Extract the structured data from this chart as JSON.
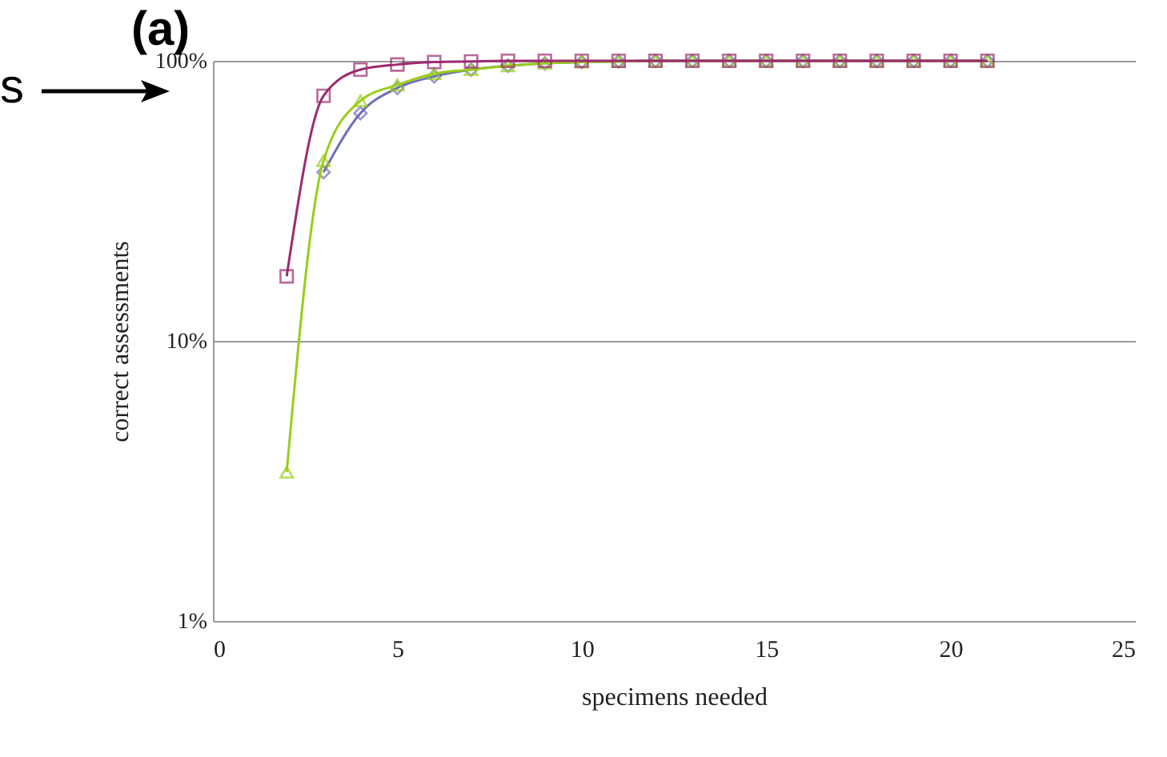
{
  "chart_data": {
    "type": "line",
    "xlabel": "specimens needed",
    "ylabel": "correct assessments",
    "annotations": [
      "(a)",
      "s"
    ],
    "x": [
      2,
      3,
      4,
      5,
      6,
      7,
      8,
      9,
      10,
      11,
      12,
      13,
      14,
      15,
      16,
      17,
      18,
      19,
      20,
      21
    ],
    "series": [
      {
        "color": "#6b6fb5",
        "marker": "diamond",
        "values": [
          null,
          40,
          65,
          80,
          88,
          93,
          96,
          98,
          99,
          99.5,
          100,
          100,
          100,
          100,
          100,
          100,
          100,
          100,
          100,
          100
        ]
      },
      {
        "color": "#9acd1a",
        "marker": "triangle",
        "values": [
          3.4,
          44,
          72,
          82,
          90,
          93,
          96,
          98,
          99,
          99.5,
          100,
          100,
          100,
          100,
          100,
          100,
          100,
          100,
          100,
          100
        ]
      },
      {
        "color": "#9c2a6e",
        "marker": "square",
        "values": [
          17,
          75,
          93,
          97,
          99,
          99.5,
          100,
          100,
          100,
          100,
          100,
          100,
          100,
          100,
          100,
          100,
          100,
          100,
          100,
          100
        ]
      }
    ],
    "log": "y",
    "grid": "y",
    "xlim": [
      0,
      25
    ],
    "xticks": [
      0,
      5,
      10,
      15,
      20,
      25
    ],
    "ylim": [
      1,
      100
    ],
    "yticks": [
      {
        "value": 1,
        "label": "1%"
      },
      {
        "value": 10,
        "label": "10%"
      },
      {
        "value": 100,
        "label": "100%"
      }
    ]
  }
}
